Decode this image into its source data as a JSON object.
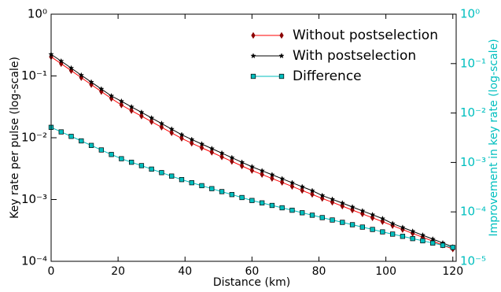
{
  "chart_data": {
    "type": "line",
    "xlabel": "Distance (km)",
    "ylabel": "Key rate per pulse (log-scale)",
    "y2label": "Improvement in key rate (log-scale)",
    "x": [
      0,
      3,
      6,
      9,
      12,
      15,
      18,
      21,
      24,
      27,
      30,
      33,
      36,
      39,
      42,
      45,
      48,
      51,
      54,
      57,
      60,
      63,
      66,
      69,
      72,
      75,
      78,
      81,
      84,
      87,
      90,
      93,
      96,
      99,
      102,
      105,
      108,
      111,
      114,
      117,
      120
    ],
    "series": [
      {
        "name": "Without postselection",
        "color": "#ff0000",
        "marker_color": "#8b0000",
        "marker": "diamond",
        "values": [
          0.204,
          0.158,
          0.122,
          0.0939,
          0.0724,
          0.0559,
          0.0432,
          0.0339,
          0.0275,
          0.0224,
          0.0182,
          0.0148,
          0.012,
          0.00977,
          0.00815,
          0.00688,
          0.00581,
          0.0049,
          0.00414,
          0.00349,
          0.00295,
          0.00254,
          0.00219,
          0.00189,
          0.00163,
          0.0014,
          0.00121,
          0.00104,
          0.000904,
          0.000782,
          0.000676,
          0.000585,
          0.000506,
          0.000438,
          0.000378,
          0.000327,
          0.000283,
          0.000245,
          0.000212,
          0.000183,
          0.000158
        ]
      },
      {
        "name": "With postselection",
        "color": "#000000",
        "marker_color": "#000000",
        "marker": "star",
        "values": [
          0.224,
          0.174,
          0.134,
          0.103,
          0.0796,
          0.0615,
          0.0475,
          0.039,
          0.0316,
          0.0258,
          0.0209,
          0.017,
          0.0138,
          0.0112,
          0.00937,
          0.00791,
          0.00668,
          0.00564,
          0.00476,
          0.00401,
          0.00339,
          0.00292,
          0.00252,
          0.00217,
          0.00187,
          0.00161,
          0.00139,
          0.00116,
          0.00101,
          0.000876,
          0.000757,
          0.000655,
          0.000567,
          0.000491,
          0.000408,
          0.000353,
          0.000306,
          0.000265,
          0.000229,
          0.000198,
          0.000171
        ]
      },
      {
        "name": "Difference",
        "color": "#00bfbf",
        "marker_color": "#00bfbf",
        "marker": "square",
        "axis": "y2",
        "values": [
          0.00513,
          0.00415,
          0.00337,
          0.00273,
          0.00221,
          0.00179,
          0.00145,
          0.00119,
          0.00101,
          0.000862,
          0.000733,
          0.000623,
          0.00053,
          0.00045,
          0.000389,
          0.000339,
          0.000295,
          0.000257,
          0.000224,
          0.000195,
          0.00017,
          0.000152,
          0.000135,
          0.000121,
          0.000108,
          9.6e-05,
          8.57e-05,
          7.66e-05,
          6.85e-05,
          6.14e-05,
          5.5e-05,
          4.92e-05,
          4.41e-05,
          3.94e-05,
          3.55e-05,
          3.2e-05,
          2.88e-05,
          2.6e-05,
          2.34e-05,
          2.11e-05,
          1.91e-05
        ]
      }
    ],
    "xlim": [
      0,
      121
    ],
    "xticks": [
      0,
      20,
      40,
      60,
      80,
      100,
      120
    ],
    "ylim": [
      0.0001,
      1
    ],
    "yscale": "log",
    "yticks": [
      {
        "value": 0.0001,
        "label": "10⁻⁴"
      },
      {
        "value": 0.001,
        "label": "10⁻³"
      },
      {
        "value": 0.01,
        "label": "10⁻²"
      },
      {
        "value": 0.1,
        "label": "10⁻¹"
      },
      {
        "value": 1,
        "label": "10⁰"
      }
    ],
    "y2lim": [
      1e-05,
      1
    ],
    "y2scale": "log",
    "y2color": "#00bfbf",
    "y2ticks": [
      {
        "value": 1e-05,
        "label": "10⁻⁵"
      },
      {
        "value": 0.0001,
        "label": "10⁻⁴"
      },
      {
        "value": 0.001,
        "label": "10⁻³"
      },
      {
        "value": 0.01,
        "label": "10⁻²"
      },
      {
        "value": 0.1,
        "label": "10⁻¹"
      },
      {
        "value": 1,
        "label": "10⁰"
      }
    ],
    "legend": "upper right"
  }
}
